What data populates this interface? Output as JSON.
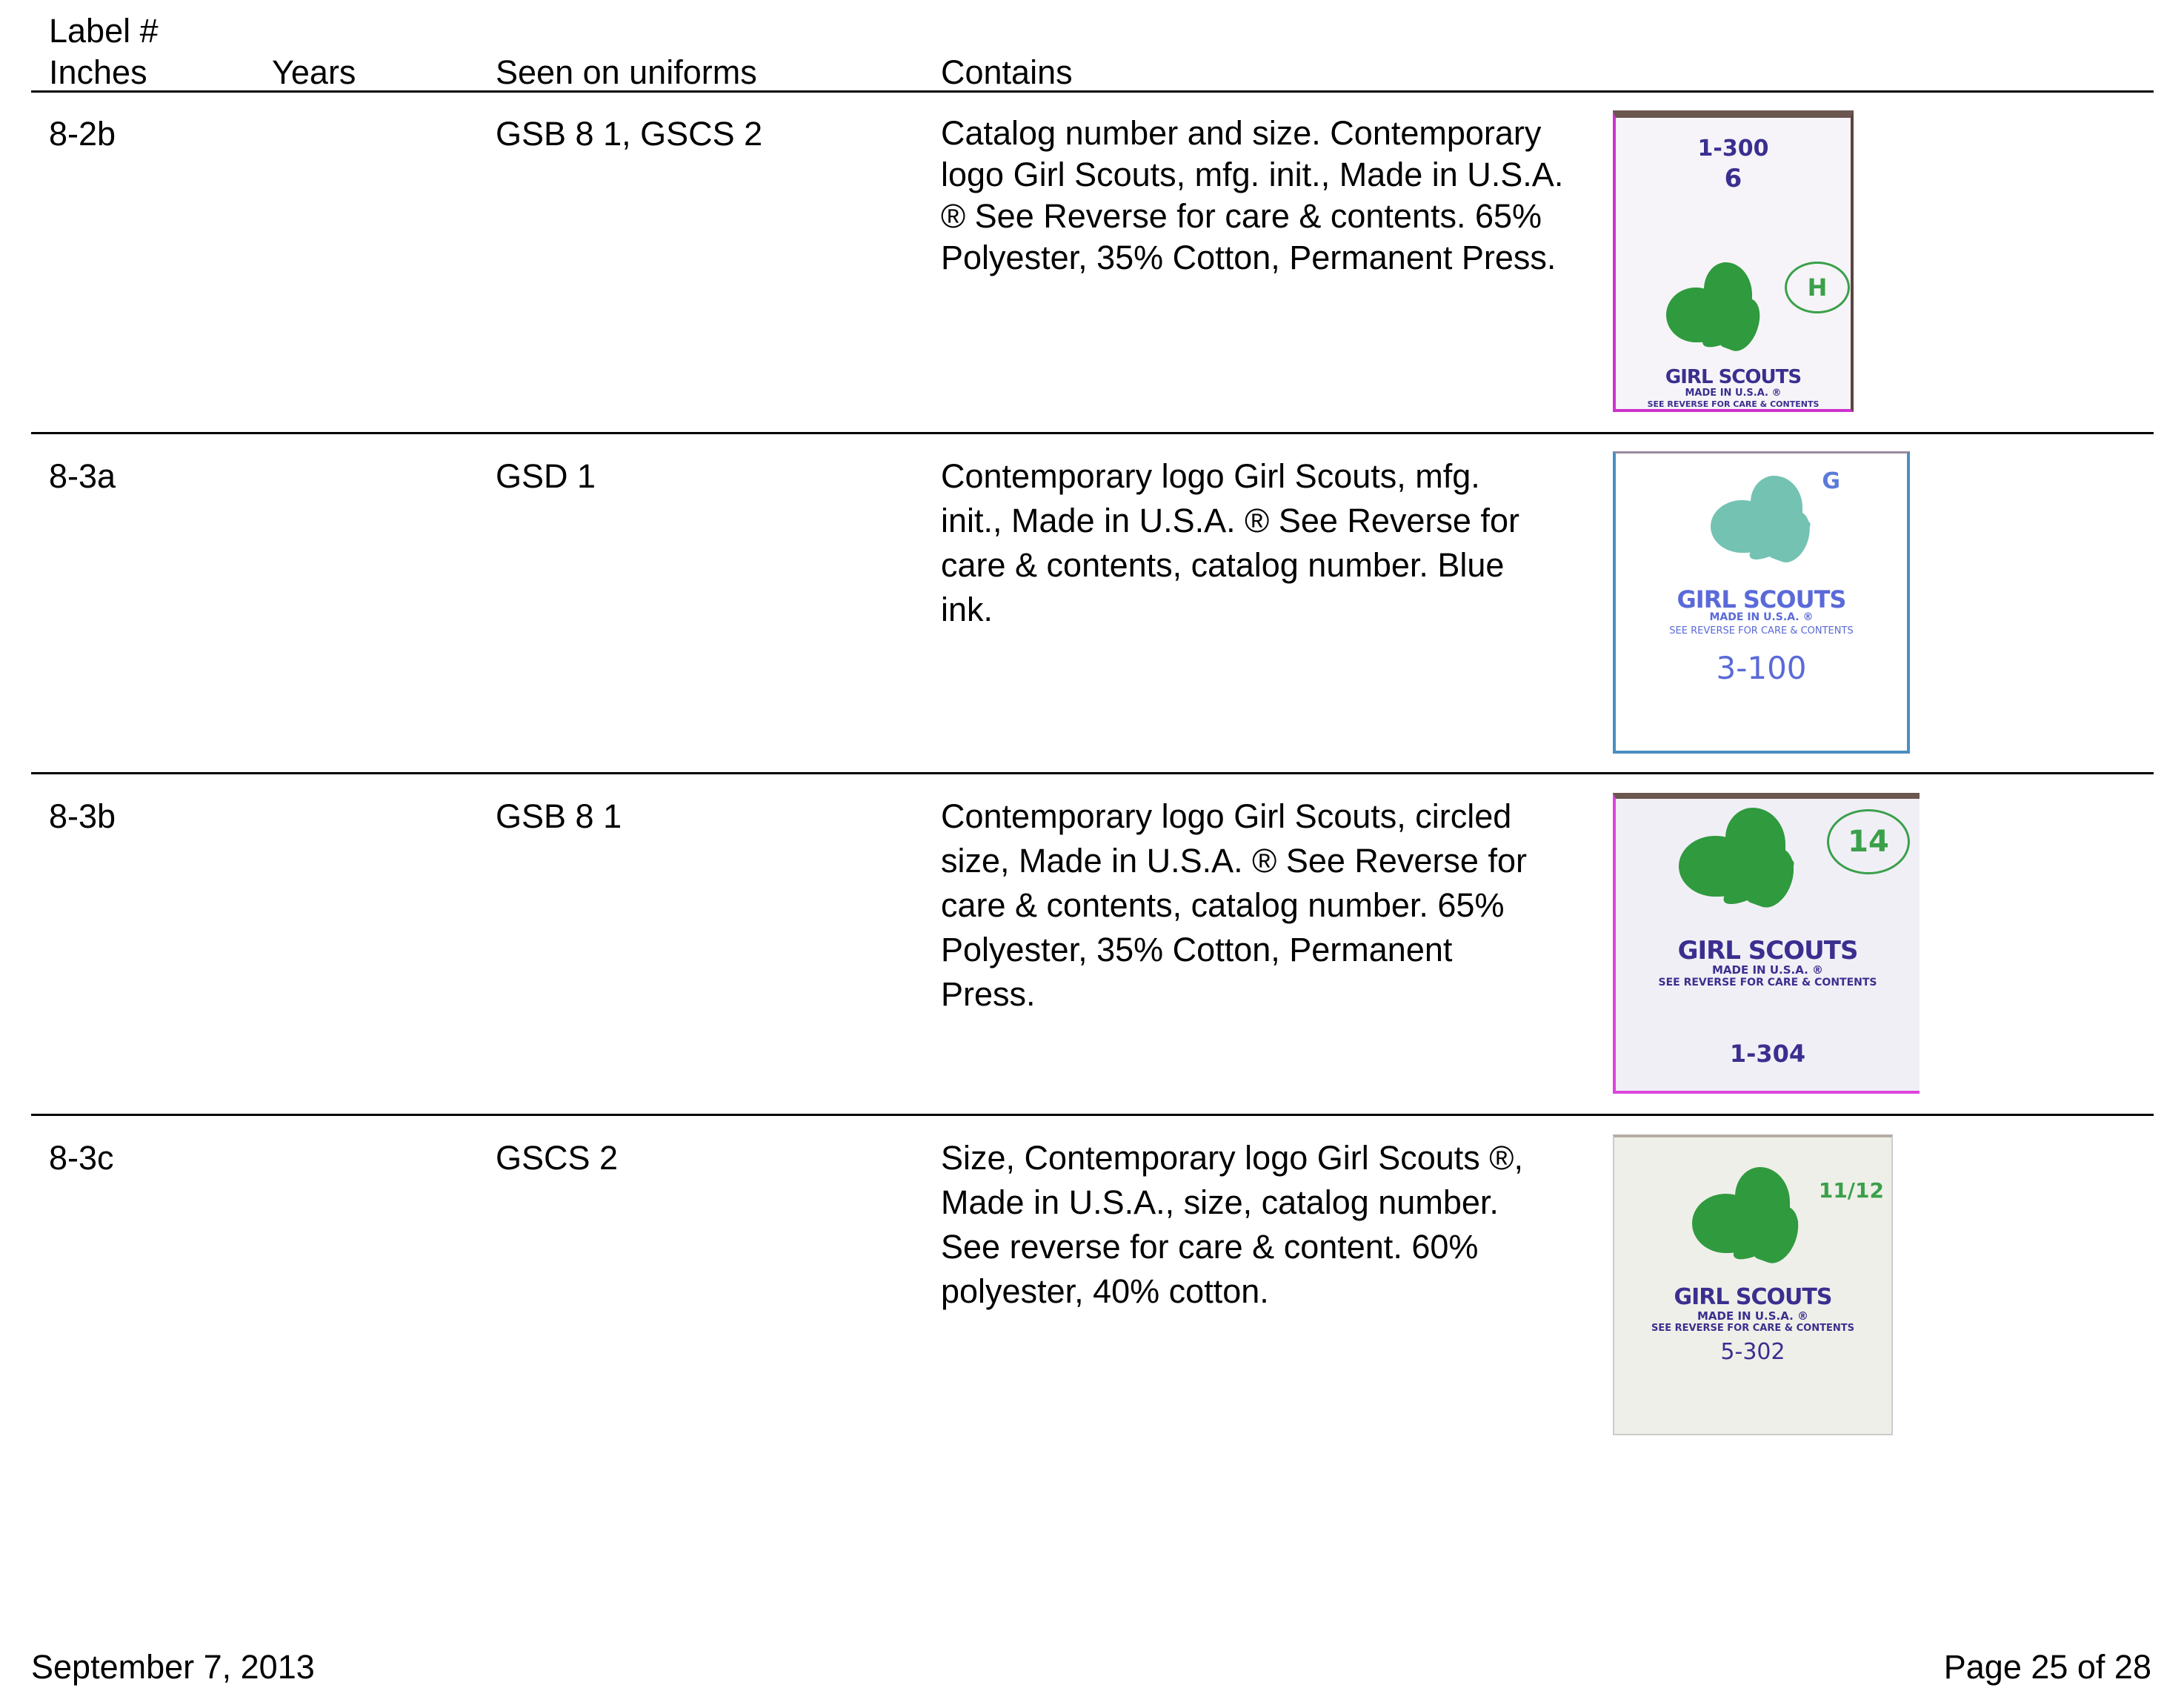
{
  "header": {
    "label_line1": "Label #",
    "label_line2": "Inches",
    "years": "Years",
    "seen": "Seen on uniforms",
    "contains": "Contains"
  },
  "rows": [
    {
      "label": "8-2b",
      "years": "",
      "seen": "GSB 8 1, GSCS 2",
      "contains": [
        "Catalog number and size. Contemporary",
        "logo Girl Scouts, mfg. init., Made in U.S.A.",
        "® See Reverse for care & contents. 65%",
        "Polyester, 35% Cotton, Permanent Press."
      ],
      "tag": {
        "catalog": "1-300",
        "size": "6",
        "circle": "H",
        "brand": "GIRL SCOUTS",
        "made": "MADE IN U.S.A. ®",
        "reverse": "SEE REVERSE FOR CARE & CONTENTS",
        "border": "#cc33cc"
      }
    },
    {
      "label": "8-3a",
      "years": "",
      "seen": "GSD 1",
      "contains": [
        "Contemporary logo Girl Scouts, mfg.",
        "init., Made in U.S.A. ® See Reverse for",
        "care & contents, catalog number. Blue",
        "ink."
      ],
      "tag": {
        "catalog": "3-100",
        "size": "G",
        "brand": "GIRL SCOUTS",
        "made": "MADE IN U.S.A. ®",
        "reverse": "SEE REVERSE FOR CARE & CONTENTS",
        "border": "#4a8fc0"
      }
    },
    {
      "label": "8-3b",
      "years": "",
      "seen": "GSB 8 1",
      "contains": [
        "Contemporary logo Girl Scouts, circled",
        "size, Made in U.S.A. ® See Reverse for",
        "care & contents, catalog number. 65%",
        "Polyester, 35% Cotton, Permanent",
        "Press."
      ],
      "tag": {
        "catalog": "1-304",
        "circle": "14",
        "brand": "GIRL SCOUTS",
        "made": "MADE IN U.S.A. ®",
        "reverse": "SEE REVERSE FOR CARE & CONTENTS",
        "border": "#dd44dd"
      }
    },
    {
      "label": "8-3c",
      "years": "",
      "seen": "GSCS 2",
      "contains": [
        "Size, Contemporary logo Girl Scouts ®,",
        "Made in U.S.A., size, catalog number.",
        "See reverse for care & content. 60%",
        "polyester, 40% cotton."
      ],
      "tag": {
        "catalog": "5-302",
        "size": "11/12",
        "brand": "GIRL SCOUTS",
        "made": "MADE IN U.S.A. ®",
        "reverse": "SEE REVERSE FOR CARE & CONTENTS",
        "border": "#cccccc"
      }
    }
  ],
  "footer": {
    "date": "September 7, 2013",
    "page": "Page 25 of 28"
  }
}
